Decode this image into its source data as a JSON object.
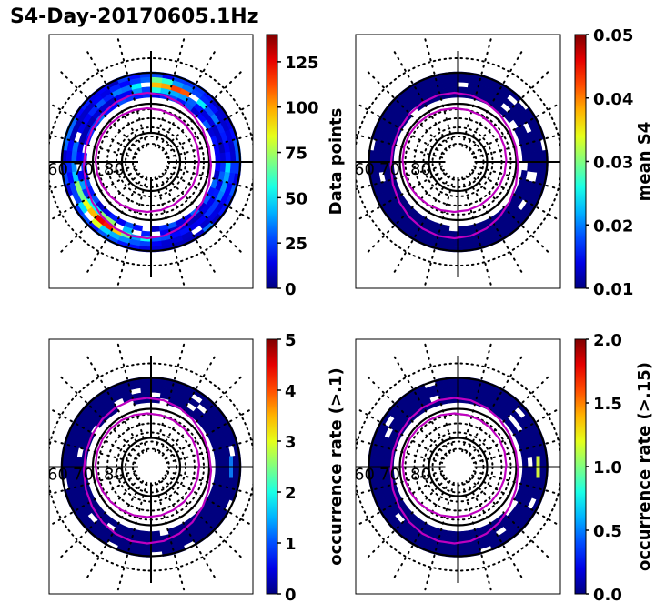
{
  "figure": {
    "title": "S4-Day-20170605.1Hz"
  },
  "chart_data": [
    {
      "type": "heatmap",
      "projection": "polar-stereographic",
      "title": "",
      "quantity": "Data points",
      "colormap": "jet",
      "colorbar": {
        "label": "Data points",
        "range": [
          0,
          140
        ],
        "ticks": [
          "0",
          "25",
          "50",
          "75",
          "100",
          "125"
        ],
        "tick_values": [
          0,
          25,
          50,
          75,
          100,
          125
        ]
      },
      "latitude_labels": [
        "60",
        "70",
        "80"
      ],
      "grid": true,
      "ring_description": "annular band between ~60° and ~70° MLAT, values mostly 10–60, with a higher ring (~90–135) around 65°",
      "ring_bins": [
        18,
        22,
        30,
        55,
        95,
        120,
        60,
        35,
        25,
        20,
        15,
        28,
        40,
        65,
        100,
        130,
        80,
        45,
        30,
        22,
        18,
        25,
        35,
        50
      ]
    },
    {
      "type": "heatmap",
      "projection": "polar-stereographic",
      "quantity": "mean S4",
      "colormap": "jet",
      "colorbar": {
        "label": "mean S4",
        "range": [
          0.01,
          0.05
        ],
        "ticks": [
          "0.01",
          "0.02",
          "0.03",
          "0.04",
          "0.05"
        ],
        "tick_values": [
          0.01,
          0.02,
          0.03,
          0.04,
          0.05
        ]
      },
      "latitude_labels": [
        "60",
        "70",
        "80"
      ],
      "grid": true,
      "ring_description": "annular band between ~60° and ~70° MLAT, uniformly at or below 0.01"
    },
    {
      "type": "heatmap",
      "projection": "polar-stereographic",
      "quantity": "occurrence rate (>.1)",
      "colormap": "jet",
      "colorbar": {
        "label": "occurrence rate (>.1)",
        "range": [
          0,
          5
        ],
        "ticks": [
          "0",
          "1",
          "2",
          "3",
          "4",
          "5"
        ],
        "tick_values": [
          0,
          1,
          2,
          3,
          4,
          5
        ]
      },
      "latitude_labels": [
        "60",
        "70",
        "80"
      ],
      "grid": true,
      "ring_description": "annular band mostly 0; one cell near 0° (dawn side, ~63° MLAT) at ~0.8",
      "highlight_cell": {
        "value": 0.8,
        "color": "#0a78f0"
      }
    },
    {
      "type": "heatmap",
      "projection": "polar-stereographic",
      "quantity": "occurrence rate (>.15)",
      "colormap": "jet",
      "colorbar": {
        "label": "occurrence rate (>.15)",
        "range": [
          0.0,
          2.0
        ],
        "ticks": [
          "0.0",
          "0.5",
          "1.0",
          "1.5",
          "2.0"
        ],
        "tick_values": [
          0.0,
          0.5,
          1.0,
          1.5,
          2.0
        ]
      },
      "latitude_labels": [
        "60",
        "70",
        "80"
      ],
      "grid": true,
      "ring_description": "annular band mostly 0; one cell near 0° (dawn side, ~63° MLAT) at ~1.35",
      "highlight_cell": {
        "value": 1.35,
        "color": "#d4f53c"
      }
    }
  ],
  "colors": {
    "base_ring": "#00007f",
    "oval_line": "#bf00bf",
    "grid_black": "#000000"
  }
}
